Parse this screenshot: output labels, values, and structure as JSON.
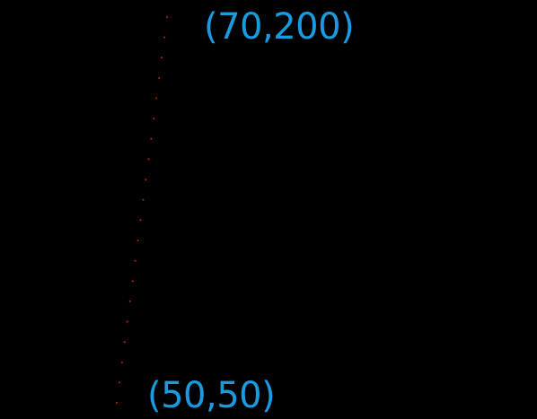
{
  "diagram": {
    "start_point_label": "(50,50)",
    "end_point_label": "(70,200)",
    "dot_count": 20,
    "label_color": "#1a9be0",
    "dot_color": "#cc2200",
    "background_color": "#000000"
  }
}
